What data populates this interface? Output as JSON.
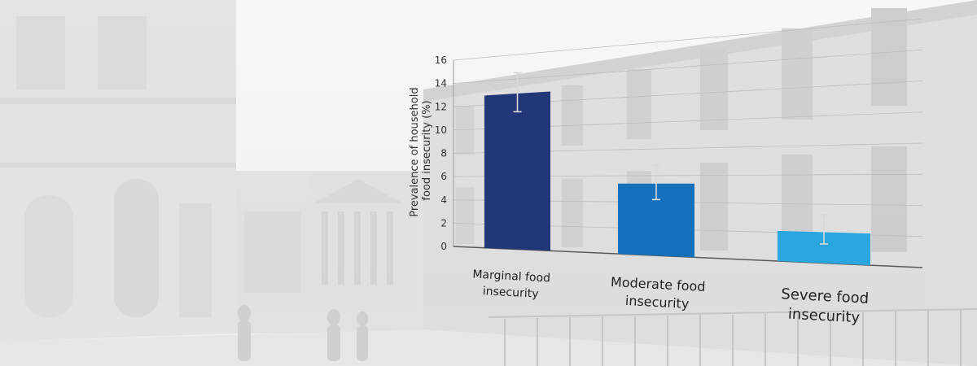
{
  "chart_data": {
    "type": "bar",
    "ylabel": "Prevalence of household food insecurity (%)",
    "ylabel_lines": [
      "Prevalence of household",
      "food insecurity (%)"
    ],
    "yticks": [
      0,
      2,
      4,
      6,
      8,
      10,
      12,
      14,
      16
    ],
    "ylim": [
      0,
      16
    ],
    "grid": true,
    "categories": [
      "Marginal food insecurity",
      "Moderate food insecurity",
      "Severe food insecurity"
    ],
    "category_label_lines": [
      [
        "Marginal food",
        "insecurity"
      ],
      [
        "Moderate food",
        "insecurity"
      ],
      [
        "Severe food",
        "insecurity"
      ]
    ],
    "values": [
      12.8,
      5.4,
      2.1
    ],
    "error_low": [
      11.3,
      4.2,
      1.3
    ],
    "error_high": [
      14.5,
      6.8,
      3.3
    ],
    "colors": [
      "#223777",
      "#1671bd",
      "#2aa7e1"
    ]
  }
}
